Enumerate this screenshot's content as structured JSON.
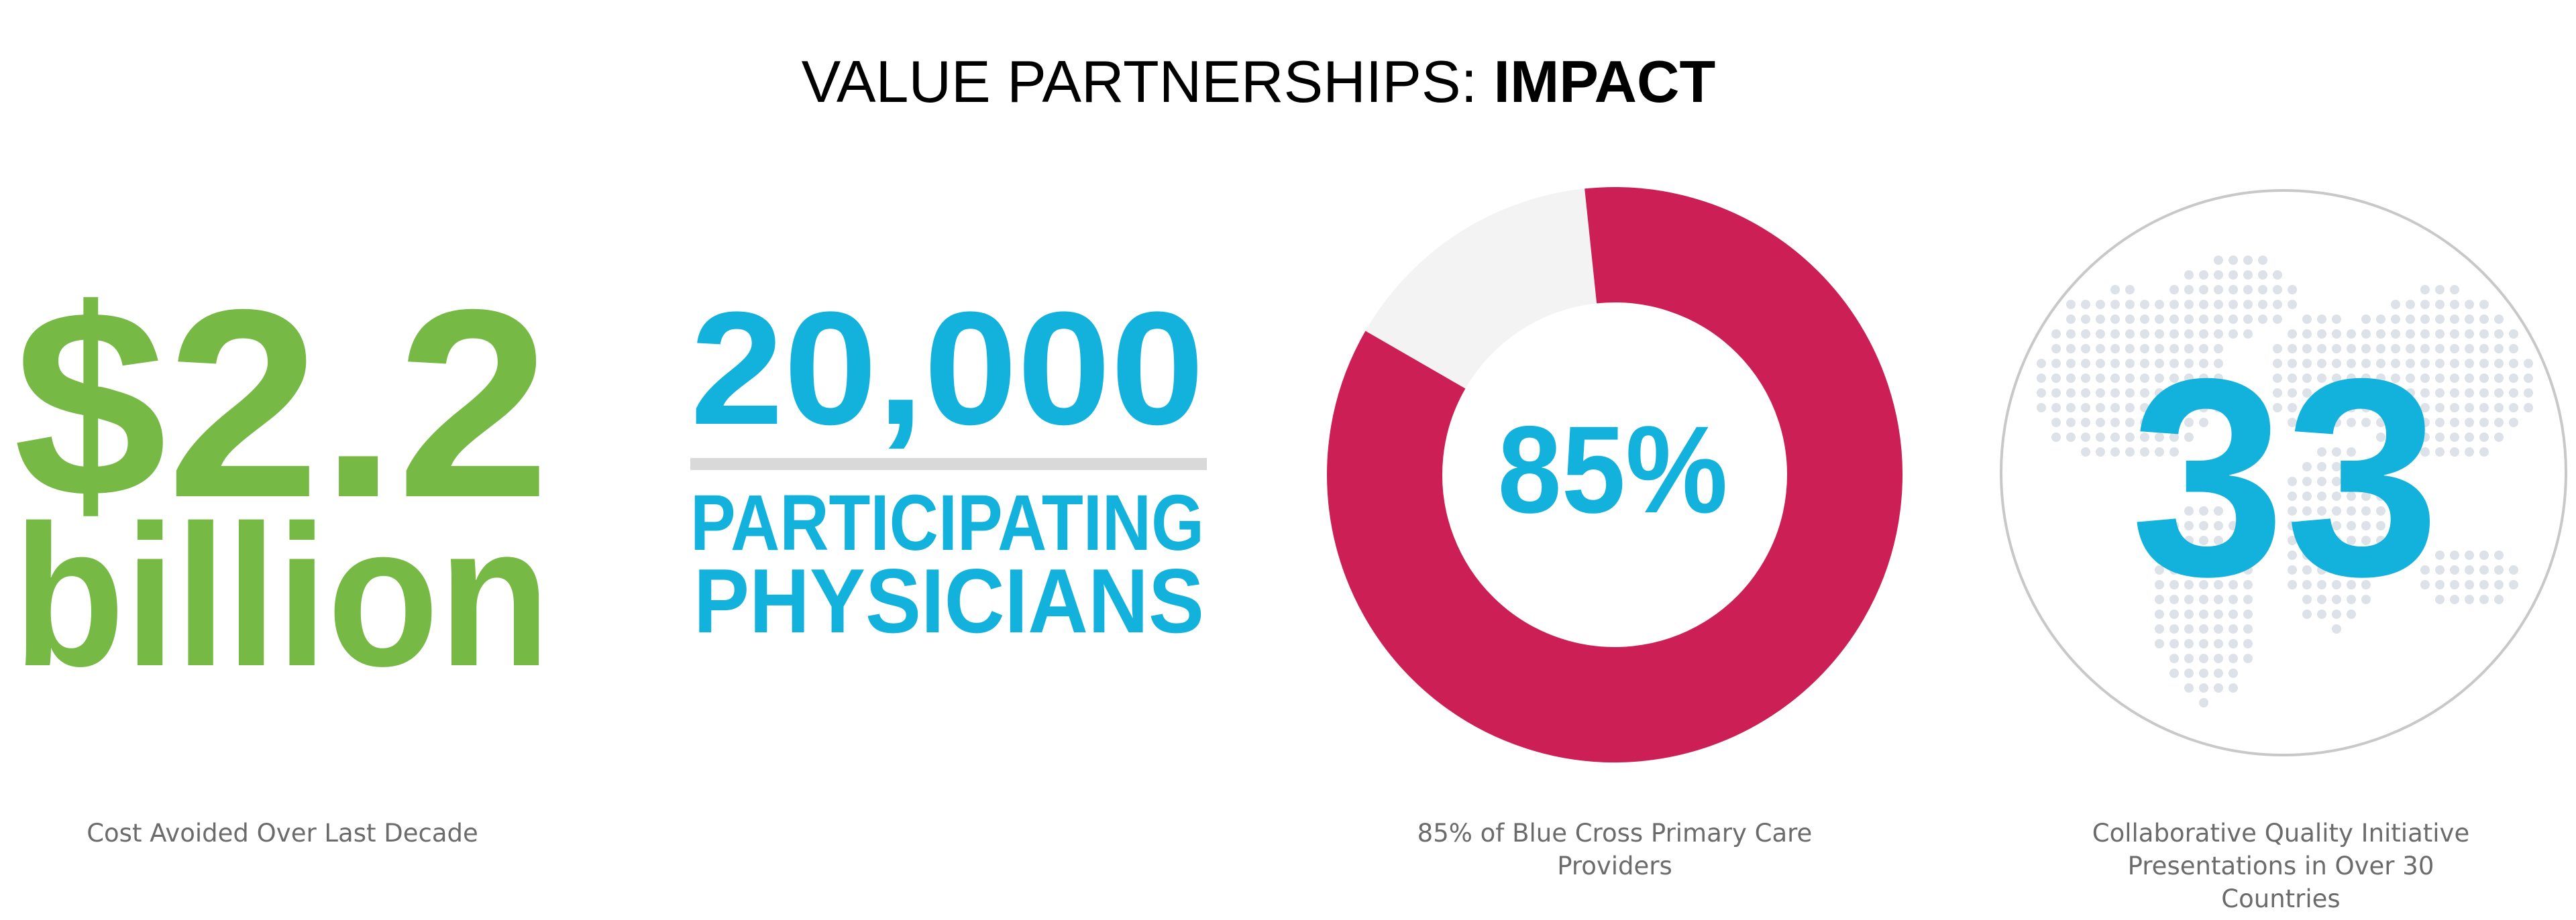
{
  "header": {
    "title_plain": "VALUE PARTNERSHIPS: ",
    "title_bold": "IMPACT"
  },
  "stats": [
    {
      "line1": "$2.2",
      "line2": "billion",
      "caption": "Cost Avoided Over Last Decade"
    },
    {
      "number": "20,000",
      "line1": "PARTICIPATING",
      "line2": "PHYSICIANS"
    },
    {
      "value": 85,
      "label": "85%",
      "caption": "85% of Blue Cross Primary Care Providers"
    },
    {
      "number": "33",
      "caption": "Collaborative Quality Initiative Presentations in Over 30 Countries"
    }
  ]
}
